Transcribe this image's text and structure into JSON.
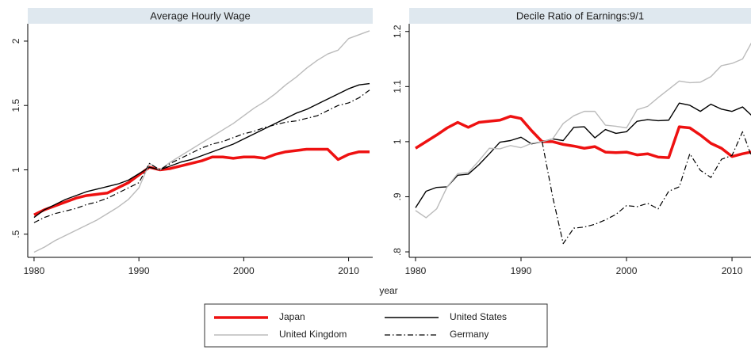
{
  "chart_data": [
    {
      "type": "line",
      "title": "Average Hourly Wage",
      "xlabel": "year",
      "x": [
        1980,
        1981,
        1982,
        1983,
        1984,
        1985,
        1986,
        1987,
        1988,
        1989,
        1990,
        1991,
        1992,
        1993,
        1994,
        1995,
        1996,
        1997,
        1998,
        1999,
        2000,
        2001,
        2002,
        2003,
        2004,
        2005,
        2006,
        2007,
        2008,
        2009,
        2010,
        2011,
        2012
      ],
      "xlim": [
        1979.4,
        2012.3
      ],
      "xticks": [
        1980,
        1990,
        2000,
        2010
      ],
      "ylim": [
        0.32,
        2.135
      ],
      "yticks": [
        {
          "value": 0.5,
          "label": ".5"
        },
        1,
        1.5,
        2
      ],
      "series": [
        {
          "name": "Japan",
          "color": "#ee1111",
          "style": "thick",
          "values": [
            0.65,
            0.69,
            0.72,
            0.75,
            0.78,
            0.8,
            0.81,
            0.82,
            0.86,
            0.9,
            0.96,
            1.02,
            1.0,
            1.01,
            1.03,
            1.05,
            1.07,
            1.1,
            1.1,
            1.09,
            1.1,
            1.1,
            1.09,
            1.12,
            1.14,
            1.15,
            1.16,
            1.16,
            1.16,
            1.08,
            1.12,
            1.14,
            1.14
          ]
        },
        {
          "name": "United States",
          "color": "#000000",
          "style": "solid",
          "values": [
            0.63,
            0.69,
            0.73,
            0.77,
            0.8,
            0.83,
            0.85,
            0.87,
            0.89,
            0.92,
            0.97,
            1.02,
            1.0,
            1.03,
            1.06,
            1.08,
            1.11,
            1.14,
            1.17,
            1.2,
            1.24,
            1.28,
            1.32,
            1.36,
            1.4,
            1.44,
            1.47,
            1.51,
            1.55,
            1.59,
            1.63,
            1.66,
            1.67
          ]
        },
        {
          "name": "United Kingdom",
          "color": "#bbbbbb",
          "style": "solid",
          "values": [
            0.36,
            0.4,
            0.45,
            0.49,
            0.53,
            0.57,
            0.61,
            0.66,
            0.71,
            0.77,
            0.86,
            1.05,
            1.0,
            1.06,
            1.11,
            1.16,
            1.21,
            1.26,
            1.31,
            1.36,
            1.42,
            1.48,
            1.53,
            1.59,
            1.66,
            1.72,
            1.79,
            1.85,
            1.9,
            1.93,
            2.02,
            2.05,
            2.08
          ]
        },
        {
          "name": "Germany",
          "color": "#000000",
          "style": "dashdot",
          "values": [
            0.59,
            0.63,
            0.66,
            0.68,
            0.7,
            0.73,
            0.75,
            0.78,
            0.82,
            0.86,
            0.9,
            1.05,
            1.0,
            1.05,
            1.09,
            1.13,
            1.17,
            1.2,
            1.22,
            1.25,
            1.28,
            1.3,
            1.33,
            1.35,
            1.37,
            1.38,
            1.4,
            1.42,
            1.46,
            1.5,
            1.52,
            1.56,
            1.62
          ]
        }
      ]
    },
    {
      "type": "line",
      "title": "Decile Ratio of Earnings:9/1",
      "x": [
        1980,
        1981,
        1982,
        1983,
        1984,
        1985,
        1986,
        1987,
        1988,
        1989,
        1990,
        1991,
        1992,
        1993,
        1994,
        1995,
        1996,
        1997,
        1998,
        1999,
        2000,
        2001,
        2002,
        2003,
        2004,
        2005,
        2006,
        2007,
        2008,
        2009,
        2010,
        2011,
        2012
      ],
      "xlim": [
        1979.4,
        2011.8
      ],
      "xticks": [
        1980,
        1990,
        2000,
        2010
      ],
      "ylim": [
        0.79,
        1.214
      ],
      "yticks": [
        {
          "value": 0.8,
          "label": ".8"
        },
        {
          "value": 0.9,
          "label": ".9"
        },
        1,
        1.1,
        1.2
      ],
      "series": [
        {
          "color": "#ee1111",
          "style": "thick",
          "values": [
            0.988,
            1.0,
            1.012,
            1.025,
            1.035,
            1.026,
            1.035,
            1.037,
            1.039,
            1.046,
            1.042,
            1.02,
            1.0,
            1.0,
            0.995,
            0.992,
            0.988,
            0.991,
            0.981,
            0.98,
            0.981,
            0.976,
            0.978,
            0.972,
            0.971,
            1.027,
            1.025,
            1.012,
            0.997,
            0.988,
            0.973,
            0.978,
            0.982
          ]
        },
        {
          "color": "#000000",
          "style": "solid",
          "values": [
            0.88,
            0.91,
            0.917,
            0.918,
            0.939,
            0.941,
            0.958,
            0.978,
            0.999,
            1.002,
            1.008,
            0.996,
            1.0,
            1.005,
            1.002,
            1.026,
            1.027,
            1.007,
            1.022,
            1.015,
            1.018,
            1.037,
            1.04,
            1.038,
            1.039,
            1.07,
            1.066,
            1.055,
            1.068,
            1.059,
            1.055,
            1.063,
            1.045
          ]
        },
        {
          "color": "#bbbbbb",
          "style": "solid",
          "values": [
            0.875,
            0.862,
            0.878,
            0.918,
            0.942,
            0.944,
            0.965,
            0.988,
            0.987,
            0.993,
            0.989,
            0.997,
            1.0,
            1.005,
            1.033,
            1.047,
            1.055,
            1.055,
            1.03,
            1.028,
            1.025,
            1.058,
            1.064,
            1.08,
            1.095,
            1.11,
            1.107,
            1.108,
            1.118,
            1.138,
            1.142,
            1.15,
            1.185
          ]
        },
        {
          "color": "#000000",
          "style": "dashdot",
          "values": [
            null,
            null,
            null,
            null,
            null,
            null,
            null,
            null,
            null,
            null,
            null,
            null,
            1.0,
            0.9,
            0.815,
            0.843,
            0.845,
            0.85,
            0.858,
            0.868,
            0.884,
            0.882,
            0.888,
            0.878,
            0.91,
            0.918,
            0.978,
            0.948,
            0.935,
            0.968,
            0.975,
            1.018,
            0.965
          ]
        }
      ]
    }
  ]
}
